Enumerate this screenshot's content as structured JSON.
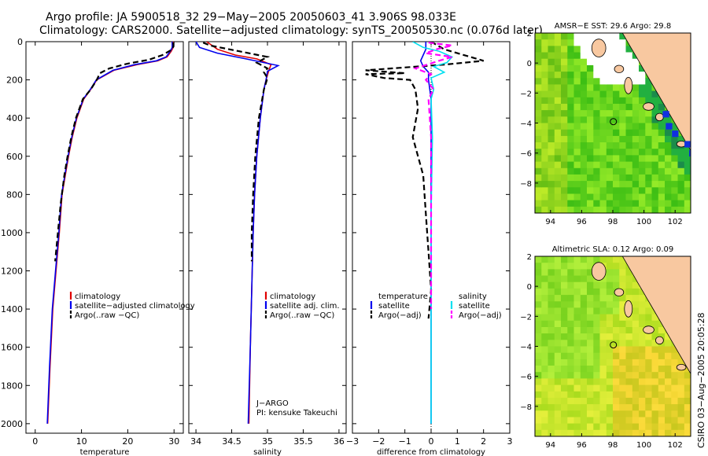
{
  "header": {
    "line1": "Argo profile: JA 5900518_32 29−May−2005 20050603_41 3.906S 98.033E",
    "line2": "Climatology: CARS2000. Satellite−adjusted climatology: synTS_20050530.nc (0.076d later)"
  },
  "footer": {
    "credit": "CSIRO 03−Aug−2005 20:05:28"
  },
  "colors": {
    "climatology": "#e00000",
    "satellite": "#0000ee",
    "argo": "#000000",
    "diff_satellite": "#00e0f0",
    "diff_argo": "#ff00ff",
    "land": "#f8c8a0",
    "ocean_green": "#22cc22"
  },
  "chart_data": [
    {
      "type": "line",
      "id": "temperature",
      "xlabel": "temperature",
      "ylabel": "",
      "xlim": [
        -2,
        32
      ],
      "ylim": [
        2050,
        0
      ],
      "xticks": [
        0,
        10,
        20,
        30
      ],
      "yticks": [
        0,
        200,
        400,
        600,
        800,
        1000,
        1200,
        1400,
        1600,
        1800,
        2000
      ],
      "legend_position": "lower-right",
      "series": [
        {
          "name": "climatology",
          "color": "#e00000",
          "dash": "solid",
          "x": [
            29.8,
            29.8,
            29.4,
            28.5,
            26.5,
            22,
            17,
            13.3,
            12,
            10.5,
            9,
            8,
            7.2,
            6.5,
            5.8,
            5.2,
            4.5,
            3.8,
            3.2,
            2.7
          ],
          "y": [
            0,
            30,
            50,
            80,
            100,
            120,
            150,
            200,
            250,
            300,
            400,
            500,
            600,
            700,
            800,
            1000,
            1200,
            1400,
            1700,
            2000
          ]
        },
        {
          "name": "satellite−adjusted climatology",
          "color": "#0000ee",
          "dash": "solid",
          "x": [
            29.6,
            29.6,
            29.2,
            28.3,
            26.2,
            21.5,
            16.8,
            13.2,
            11.9,
            10.4,
            8.9,
            7.9,
            7.1,
            6.4,
            5.7,
            5.1,
            4.4,
            3.7,
            3.1,
            2.6
          ],
          "y": [
            0,
            30,
            50,
            80,
            100,
            120,
            150,
            200,
            250,
            300,
            400,
            500,
            600,
            700,
            800,
            1000,
            1200,
            1400,
            1700,
            2000
          ]
        },
        {
          "name": "Argo(..raw −QC)",
          "color": "#000000",
          "dash": "dash",
          "x": [
            29.8,
            29.9,
            29.3,
            27.5,
            24.5,
            20,
            16,
            14,
            13.3,
            12,
            10.3,
            8.8,
            7.8,
            7.0,
            6.3,
            5.5,
            4.9,
            4.3
          ],
          "y": [
            5,
            25,
            45,
            70,
            95,
            115,
            140,
            165,
            200,
            250,
            300,
            400,
            500,
            600,
            700,
            850,
            1000,
            1150
          ]
        }
      ]
    },
    {
      "type": "line",
      "id": "salinity",
      "xlabel": "salinity",
      "ylabel": "",
      "xlim": [
        33.9,
        36.1
      ],
      "ylim": [
        2050,
        0
      ],
      "xticks": [
        34,
        34.5,
        35,
        35.5,
        36
      ],
      "yticks": [
        0,
        200,
        400,
        600,
        800,
        1000,
        1200,
        1400,
        1600,
        1800,
        2000
      ],
      "legend_position": "lower-right",
      "annotations": [
        "J−ARGO",
        "PI: kensuke Takeuchi"
      ],
      "series": [
        {
          "name": "climatology",
          "color": "#e00000",
          "dash": "solid",
          "x": [
            34.15,
            34.3,
            34.55,
            34.85,
            35.05,
            35.02,
            34.98,
            34.95,
            34.9,
            34.85,
            34.82,
            34.8,
            34.78,
            34.76,
            34.74
          ],
          "y": [
            0,
            40,
            70,
            90,
            120,
            150,
            200,
            250,
            400,
            600,
            800,
            1000,
            1300,
            1600,
            2000
          ]
        },
        {
          "name": "satellite adj. clim.",
          "color": "#0000ee",
          "dash": "solid",
          "x": [
            34.0,
            34.05,
            34.3,
            34.7,
            35.15,
            35.0,
            34.98,
            34.95,
            34.9,
            34.85,
            34.82,
            34.8,
            34.78,
            34.76,
            34.73
          ],
          "y": [
            0,
            30,
            60,
            90,
            125,
            155,
            200,
            250,
            400,
            600,
            800,
            1000,
            1300,
            1600,
            2000
          ]
        },
        {
          "name": "Argo(..raw −QC)",
          "color": "#000000",
          "dash": "dash",
          "x": [
            34.1,
            34.2,
            34.6,
            35.0,
            34.85,
            35.0,
            34.95,
            35.0,
            34.95,
            34.88,
            34.83,
            34.8,
            34.78,
            34.78
          ],
          "y": [
            5,
            20,
            50,
            80,
            110,
            140,
            160,
            190,
            250,
            400,
            600,
            800,
            1000,
            1150
          ]
        }
      ]
    },
    {
      "type": "line",
      "id": "difference",
      "xlabel": "difference from climatology",
      "ylabel": "",
      "xlim": [
        -3,
        3
      ],
      "ylim": [
        2050,
        0
      ],
      "xticks": [
        -3,
        -2,
        -1,
        0,
        1,
        2,
        3
      ],
      "yticks": [
        0,
        200,
        400,
        600,
        800,
        1000,
        1200,
        1400,
        1600,
        1800,
        2000
      ],
      "legend_position": "lower-center",
      "legend_headers": [
        "temperature",
        "salinity"
      ],
      "series": [
        {
          "name": "satellite",
          "group": "temperature",
          "color": "#0000ee",
          "dash": "solid",
          "x": [
            -0.2,
            -0.2,
            -0.3,
            -0.4,
            -0.3,
            -0.1,
            -0.1,
            0.0,
            0.0,
            0.0,
            0.0,
            0.0,
            0.0
          ],
          "y": [
            0,
            40,
            70,
            100,
            130,
            160,
            200,
            300,
            500,
            800,
            1200,
            1600,
            2000
          ]
        },
        {
          "name": "Argo(−adj)",
          "group": "temperature",
          "color": "#000000",
          "dash": "dash",
          "x": [
            0.0,
            0.5,
            1.0,
            2.0,
            0.5,
            -1.5,
            -2.5,
            -1.0,
            -2.5,
            -1.8,
            -0.8,
            -0.6,
            -0.5,
            -0.7,
            -0.3,
            -0.2,
            -0.1,
            0.0,
            -0.1
          ],
          "y": [
            0,
            40,
            60,
            100,
            120,
            140,
            150,
            165,
            170,
            190,
            200,
            250,
            350,
            500,
            700,
            900,
            1100,
            1300,
            1450
          ]
        },
        {
          "name": "satellite",
          "group": "salinity",
          "color": "#00e0f0",
          "dash": "solid",
          "x": [
            -0.7,
            -0.3,
            0.3,
            0.8,
            0.6,
            0.1,
            0.5,
            0.0,
            0.1,
            0.0,
            0.05,
            0.0,
            0.0,
            0.0
          ],
          "y": [
            0,
            30,
            50,
            80,
            110,
            130,
            160,
            190,
            250,
            300,
            500,
            900,
            1500,
            2000
          ]
        },
        {
          "name": "Argo(−adj)",
          "group": "salinity",
          "color": "#ff00ff",
          "dash": "dash",
          "x": [
            -0.1,
            0.8,
            0.2,
            -0.2,
            0.8,
            0.3,
            -0.6,
            0.0,
            -0.2,
            0.1,
            -0.1,
            0.0,
            0.0,
            0.0,
            0.0
          ],
          "y": [
            5,
            20,
            40,
            60,
            80,
            100,
            140,
            170,
            200,
            250,
            300,
            500,
            800,
            1100,
            1400
          ]
        }
      ]
    },
    {
      "type": "heatmap",
      "id": "sst_map",
      "title": "AMSR−E SST: 29.6 Argo: 29.8",
      "xlim": [
        93,
        103
      ],
      "ylim": [
        -10,
        2
      ],
      "xticks": [
        94,
        96,
        98,
        100,
        102
      ],
      "yticks": [
        2,
        0,
        -2,
        -4,
        -6,
        -8
      ],
      "marker": {
        "lon": 98.033,
        "lat": -3.906
      }
    },
    {
      "type": "heatmap",
      "id": "sla_map",
      "title": "Altimetric SLA: 0.12 Argo: 0.09",
      "xlim": [
        93,
        103
      ],
      "ylim": [
        -10,
        2
      ],
      "xticks": [
        94,
        96,
        98,
        100,
        102
      ],
      "yticks": [
        2,
        0,
        -2,
        -4,
        -6,
        -8
      ],
      "marker": {
        "lon": 98.033,
        "lat": -3.906
      }
    }
  ]
}
